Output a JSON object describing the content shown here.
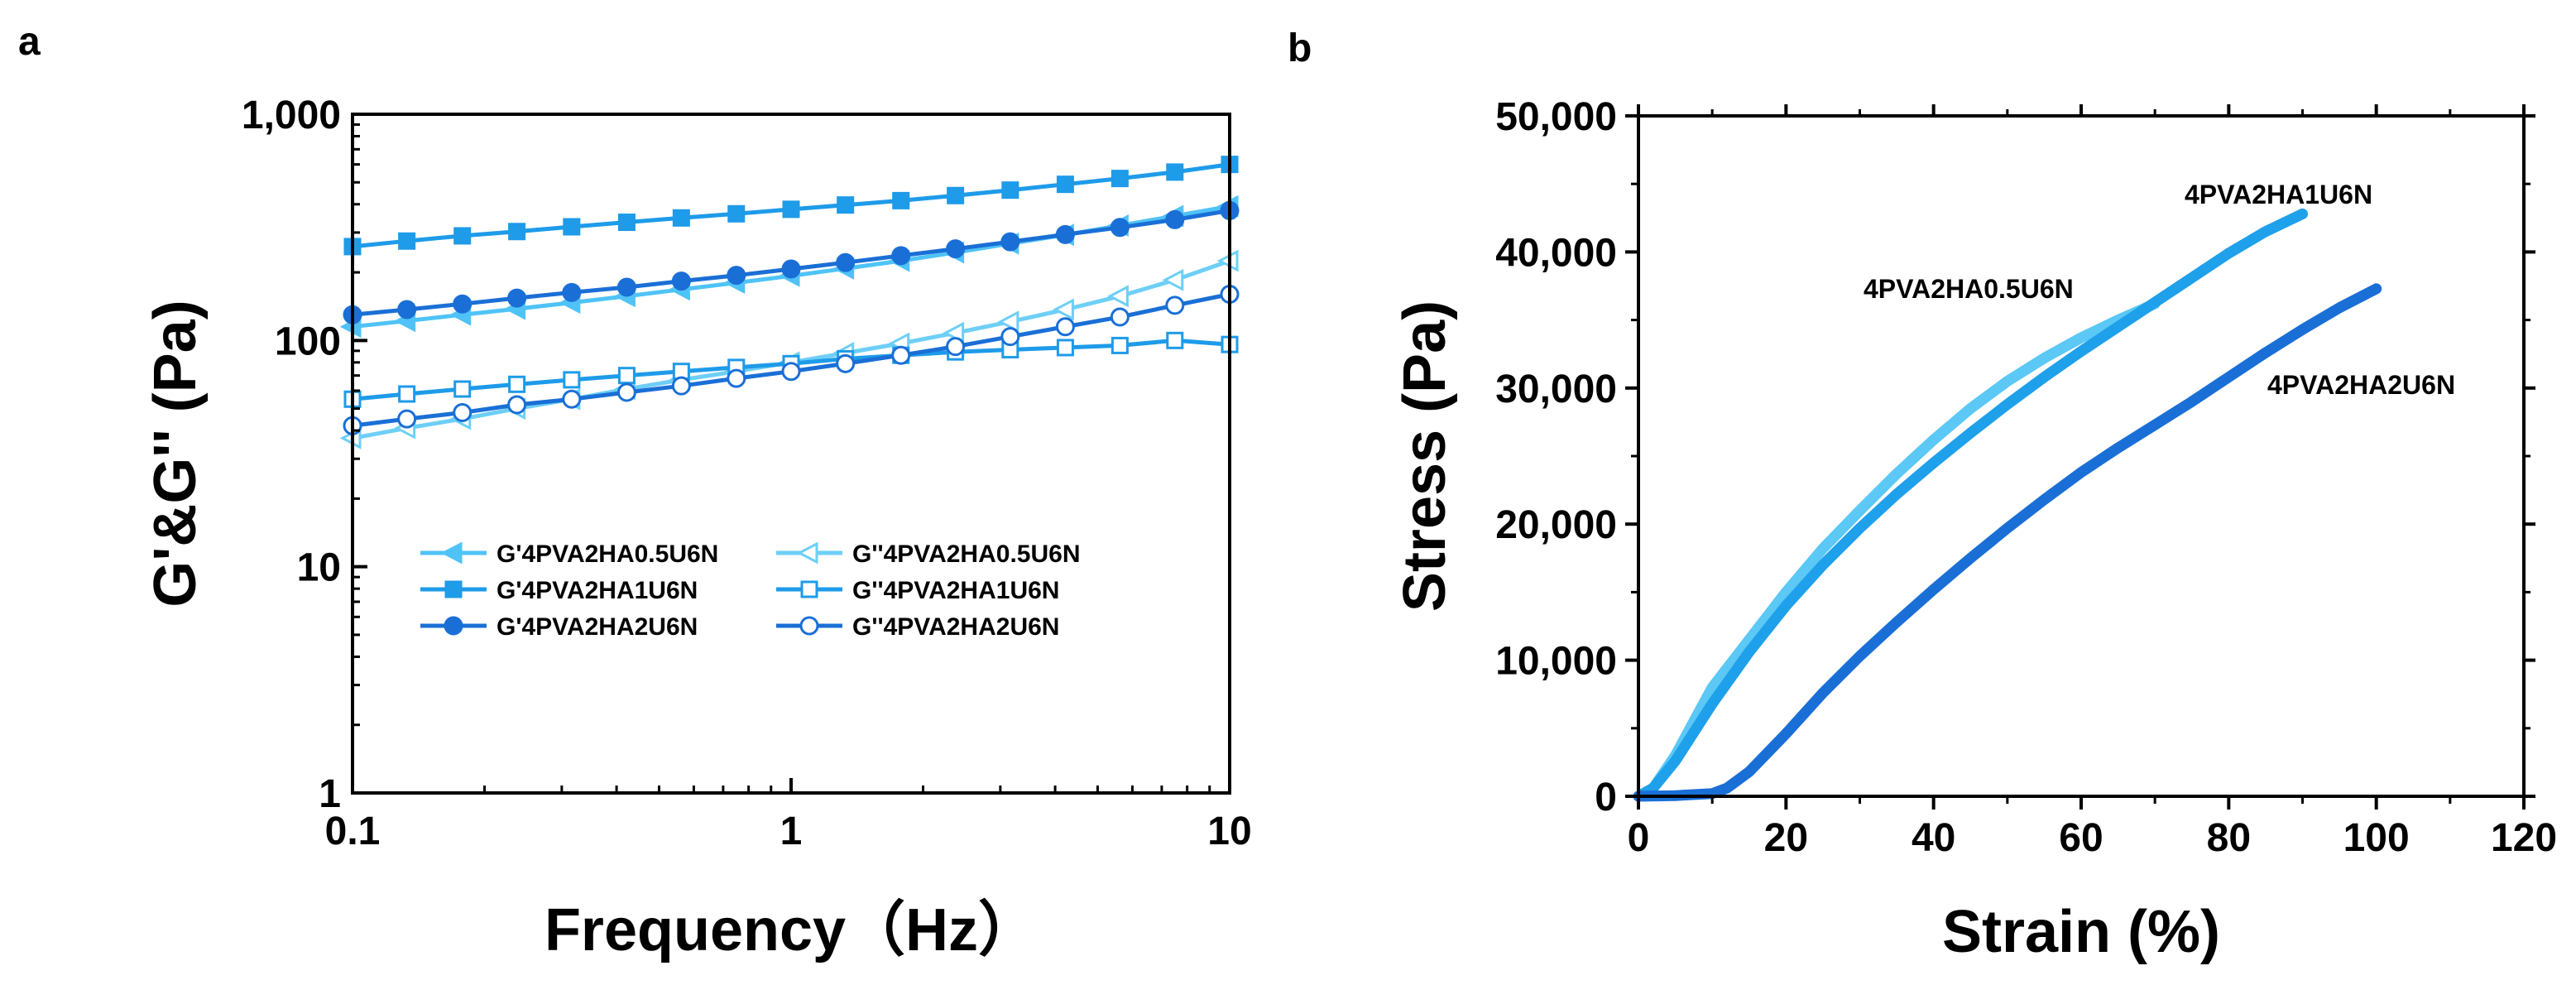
{
  "chart_data": [
    {
      "panel": "a",
      "type": "line",
      "xscale": "log",
      "yscale": "log",
      "xlabel": "Frequency（Hz）",
      "ylabel": "G'&G'' (Pa)",
      "xlim": [
        0.1,
        10
      ],
      "ylim": [
        1,
        1000
      ],
      "xticks": [
        0.1,
        1,
        10
      ],
      "xtick_labels": [
        "0.1",
        "1",
        "10"
      ],
      "yticks": [
        1,
        10,
        100,
        1000
      ],
      "ytick_labels": [
        "1",
        "10",
        "100",
        "1,000"
      ],
      "legend_position": "lower-center",
      "x": [
        0.1,
        0.133,
        0.178,
        0.237,
        0.316,
        0.422,
        0.562,
        0.75,
        1.0,
        1.33,
        1.78,
        2.37,
        3.16,
        4.22,
        5.62,
        7.5,
        10.0
      ],
      "series": [
        {
          "name": "G'4PVA2HA0.5U6N",
          "color": "#4fc3f7",
          "marker": "tri-left",
          "filled": true,
          "values": [
            115,
            122,
            130,
            138,
            147,
            157,
            168,
            180,
            193,
            208,
            225,
            245,
            268,
            293,
            322,
            355,
            392
          ]
        },
        {
          "name": "G'4PVA2HA1U6N",
          "color": "#1e9be9",
          "marker": "square",
          "filled": true,
          "values": [
            260,
            275,
            290,
            303,
            318,
            333,
            348,
            363,
            380,
            397,
            415,
            437,
            462,
            490,
            520,
            555,
            600
          ]
        },
        {
          "name": "G'4PVA2HA2U6N",
          "color": "#1a6fd6",
          "marker": "circle",
          "filled": true,
          "values": [
            130,
            137,
            145,
            154,
            163,
            172,
            183,
            194,
            207,
            221,
            237,
            254,
            273,
            294,
            316,
            342,
            375
          ]
        },
        {
          "name": "G''4PVA2HA0.5U6N",
          "color": "#6ecff6",
          "marker": "tri-left",
          "filled": false,
          "values": [
            37,
            41,
            45,
            50,
            55,
            61,
            67,
            73,
            80,
            88,
            97,
            108,
            121,
            137,
            157,
            185,
            225
          ]
        },
        {
          "name": "G''4PVA2HA1U6N",
          "color": "#1e9be9",
          "marker": "square",
          "filled": false,
          "values": [
            55,
            58,
            61,
            64,
            67,
            70,
            73,
            76,
            79,
            83,
            86,
            89,
            91,
            93,
            95,
            100,
            96
          ]
        },
        {
          "name": "G''4PVA2HA2U6N",
          "color": "#1a6fd6",
          "marker": "circle",
          "filled": false,
          "values": [
            42,
            45,
            48,
            52,
            55,
            59,
            63,
            68,
            73,
            79,
            86,
            94,
            104,
            115,
            127,
            143,
            160
          ]
        }
      ]
    },
    {
      "panel": "b",
      "type": "line",
      "xlabel": "Strain (%)",
      "ylabel": "Stress (Pa)",
      "xlim": [
        0,
        120
      ],
      "ylim": [
        0,
        50000
      ],
      "xticks": [
        0,
        20,
        40,
        60,
        80,
        100,
        120
      ],
      "xtick_labels": [
        "0",
        "20",
        "40",
        "60",
        "80",
        "100",
        "120"
      ],
      "yticks": [
        0,
        10000,
        20000,
        30000,
        40000,
        50000
      ],
      "ytick_labels": [
        "0",
        "10,000",
        "20,000",
        "30,000",
        "40,000",
        "50,000"
      ],
      "series": [
        {
          "name": "4PVA2HA0.5U6N",
          "color": "#5bc8f5",
          "x": [
            0,
            2,
            5,
            8,
            10,
            15,
            20,
            25,
            30,
            35,
            40,
            45,
            50,
            55,
            60,
            65,
            70
          ],
          "values": [
            0,
            600,
            3000,
            6000,
            8000,
            11500,
            15000,
            18200,
            21000,
            23700,
            26200,
            28500,
            30500,
            32200,
            33700,
            35000,
            36200
          ]
        },
        {
          "name": "4PVA2HA1U6N",
          "color": "#1fa0ea",
          "x": [
            0,
            2,
            5,
            10,
            15,
            20,
            25,
            30,
            35,
            40,
            45,
            50,
            55,
            60,
            65,
            70,
            75,
            80,
            85,
            90
          ],
          "values": [
            0,
            600,
            2600,
            6800,
            10600,
            14000,
            17000,
            19700,
            22200,
            24500,
            26700,
            28800,
            30800,
            32700,
            34500,
            36300,
            38100,
            39900,
            41500,
            42800
          ]
        },
        {
          "name": "4PVA2HA2U6N",
          "color": "#1a6fd6",
          "x": [
            0,
            5,
            10,
            12,
            15,
            20,
            25,
            30,
            35,
            40,
            45,
            50,
            55,
            60,
            65,
            70,
            75,
            80,
            85,
            90,
            95,
            100
          ],
          "values": [
            0,
            50,
            200,
            600,
            1800,
            4600,
            7600,
            10300,
            12800,
            15200,
            17500,
            19700,
            21800,
            23800,
            25600,
            27300,
            29000,
            30800,
            32600,
            34300,
            35900,
            37300
          ]
        }
      ],
      "annotations": [
        "4PVA2HA1U6N",
        "4PVA2HA0.5U6N",
        "4PVA2HA2U6N"
      ]
    }
  ],
  "panel_labels": {
    "a": "a",
    "b": "b"
  }
}
